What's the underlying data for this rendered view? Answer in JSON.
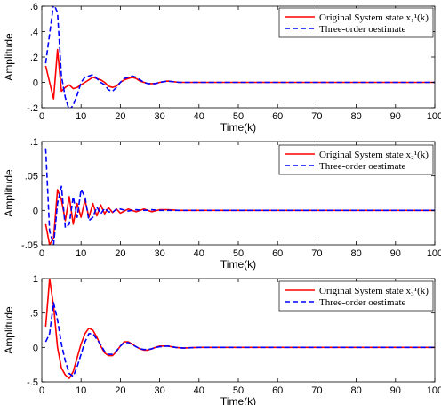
{
  "chart_data": [
    {
      "type": "line",
      "xlabel": "Time(k)",
      "ylabel": "Amplitude",
      "xlim": [
        0,
        100
      ],
      "ylim": [
        -0.2,
        0.6
      ],
      "xticks": [
        0,
        10,
        20,
        30,
        40,
        50,
        60,
        70,
        80,
        90,
        100
      ],
      "yticks": [
        -0.2,
        0,
        0.2,
        0.4,
        0.6
      ],
      "grid": false,
      "legend_position": "top-right",
      "series": [
        {
          "name": "Original System state x₁¹(k)",
          "color": "#ff0000",
          "style": "solid",
          "x": [
            1,
            2,
            3,
            4,
            5,
            6,
            7,
            8,
            9,
            10,
            11,
            12,
            13,
            14,
            15,
            16,
            17,
            18,
            19,
            20,
            21,
            22,
            23,
            24,
            25,
            26,
            27,
            28,
            29,
            30,
            32,
            35,
            40,
            45,
            50,
            55,
            60,
            70,
            80,
            90,
            100
          ],
          "values": [
            0.13,
            0.0,
            -0.13,
            0.26,
            -0.07,
            -0.04,
            -0.02,
            -0.05,
            -0.04,
            -0.02,
            0.0,
            0.02,
            0.04,
            0.03,
            0.02,
            0.0,
            -0.03,
            -0.04,
            -0.03,
            0.0,
            0.02,
            0.03,
            0.04,
            0.03,
            0.01,
            0.0,
            -0.01,
            -0.01,
            -0.01,
            0.0,
            0.01,
            0.0,
            0.0,
            0.0,
            0.0,
            0.0,
            0.0,
            0.0,
            0.0,
            0.0,
            0.0
          ]
        },
        {
          "name": "Three-order oestimate",
          "color": "#0000ff",
          "style": "dashed",
          "x": [
            1,
            2,
            3,
            4,
            5,
            6,
            7,
            8,
            9,
            10,
            11,
            12,
            13,
            14,
            15,
            16,
            17,
            18,
            19,
            20,
            21,
            22,
            23,
            24,
            25,
            26,
            27,
            28,
            29,
            30,
            32,
            35,
            40,
            45,
            50,
            55,
            60,
            70,
            80,
            90,
            100
          ],
          "values": [
            0.15,
            0.38,
            0.62,
            0.55,
            0.05,
            -0.12,
            -0.22,
            -0.18,
            -0.1,
            0.0,
            0.04,
            0.05,
            0.06,
            0.03,
            0.0,
            -0.02,
            -0.06,
            -0.07,
            -0.04,
            0.0,
            0.03,
            0.04,
            0.05,
            0.04,
            0.02,
            0.0,
            -0.01,
            -0.01,
            -0.01,
            0.0,
            0.01,
            0.0,
            0.0,
            0.0,
            0.0,
            0.0,
            0.0,
            0.0,
            0.0,
            0.0,
            0.0
          ]
        }
      ]
    },
    {
      "type": "line",
      "xlabel": "Time(k)",
      "ylabel": "Amplitude",
      "xlim": [
        0,
        100
      ],
      "ylim": [
        -0.05,
        0.1
      ],
      "xticks": [
        0,
        10,
        20,
        30,
        40,
        50,
        60,
        70,
        80,
        90,
        100
      ],
      "yticks": [
        -0.05,
        0,
        0.05,
        0.1
      ],
      "grid": false,
      "legend_position": "top-right",
      "series": [
        {
          "name": "Original System state x₂¹(k)",
          "color": "#ff0000",
          "style": "solid",
          "x": [
            1,
            2,
            3,
            4,
            5,
            6,
            7,
            8,
            9,
            10,
            11,
            12,
            13,
            14,
            15,
            16,
            17,
            18,
            19,
            20,
            22,
            24,
            26,
            28,
            30,
            32,
            35,
            40,
            45,
            50,
            60,
            70,
            80,
            90,
            100
          ],
          "values": [
            -0.02,
            -0.05,
            -0.04,
            0.03,
            0.015,
            -0.015,
            0.02,
            -0.02,
            0.01,
            -0.01,
            0.015,
            -0.01,
            0.01,
            -0.008,
            0.008,
            -0.005,
            0.004,
            -0.003,
            0.002,
            -0.004,
            0.002,
            -0.002,
            0.002,
            -0.002,
            0.001,
            0.001,
            0.0,
            0.0,
            0.0,
            0.0,
            0.0,
            0.0,
            0.0,
            0.0,
            0.0
          ]
        },
        {
          "name": "Three-order oestimate",
          "color": "#0000ff",
          "style": "dashed",
          "x": [
            1,
            2,
            3,
            4,
            5,
            6,
            7,
            8,
            9,
            10,
            11,
            12,
            13,
            14,
            15,
            16,
            17,
            18,
            19,
            20,
            22,
            24,
            26,
            28,
            30,
            32,
            35,
            40,
            45,
            50,
            60,
            70,
            80,
            90,
            100
          ],
          "values": [
            0.09,
            -0.03,
            -0.05,
            0.01,
            0.035,
            -0.025,
            -0.02,
            0.02,
            -0.01,
            0.03,
            0.02,
            -0.015,
            -0.01,
            0.005,
            -0.005,
            0.003,
            -0.002,
            -0.003,
            0.002,
            0.002,
            -0.001,
            0.001,
            0.0,
            0.001,
            0.0,
            0.0,
            0.0,
            0.0,
            0.0,
            0.0,
            0.0,
            0.0,
            0.0,
            0.0,
            0.0
          ]
        }
      ]
    },
    {
      "type": "line",
      "xlabel": "Time(k)",
      "ylabel": "Amplitude",
      "xlim": [
        0,
        100
      ],
      "ylim": [
        -0.5,
        1
      ],
      "xticks": [
        0,
        10,
        20,
        30,
        40,
        50,
        60,
        70,
        80,
        90,
        100
      ],
      "yticks": [
        -0.5,
        0,
        0.5,
        1
      ],
      "grid": false,
      "legend_position": "top-right",
      "series": [
        {
          "name": "Original System state x₃¹(k)",
          "color": "#ff0000",
          "style": "solid",
          "x": [
            1,
            2,
            3,
            4,
            5,
            6,
            7,
            8,
            9,
            10,
            11,
            12,
            13,
            14,
            15,
            16,
            17,
            18,
            19,
            20,
            21,
            22,
            23,
            24,
            25,
            26,
            27,
            28,
            29,
            30,
            32,
            34,
            36,
            40,
            45,
            50,
            55,
            60,
            70,
            80,
            90,
            100
          ],
          "values": [
            0.3,
            1.0,
            0.6,
            0.0,
            -0.3,
            -0.4,
            -0.45,
            -0.35,
            -0.15,
            0.05,
            0.2,
            0.28,
            0.25,
            0.15,
            0.02,
            -0.08,
            -0.12,
            -0.12,
            -0.06,
            0.02,
            0.08,
            0.08,
            0.05,
            0.01,
            -0.02,
            -0.04,
            -0.04,
            -0.02,
            0.0,
            0.02,
            0.02,
            0.0,
            -0.01,
            0.0,
            0.0,
            0.0,
            0.0,
            0.0,
            0.0,
            0.0,
            0.0,
            0.0
          ]
        },
        {
          "name": "Three-order oestimate",
          "color": "#0000ff",
          "style": "dashed",
          "x": [
            1,
            2,
            3,
            4,
            5,
            6,
            7,
            8,
            9,
            10,
            11,
            12,
            13,
            14,
            15,
            16,
            17,
            18,
            19,
            20,
            21,
            22,
            23,
            24,
            25,
            26,
            27,
            28,
            29,
            30,
            32,
            34,
            36,
            40,
            45,
            50,
            55,
            60,
            70,
            80,
            90,
            100
          ],
          "values": [
            0.08,
            0.2,
            0.65,
            0.4,
            0.05,
            -0.2,
            -0.38,
            -0.42,
            -0.28,
            -0.1,
            0.08,
            0.2,
            0.2,
            0.12,
            0.04,
            -0.06,
            -0.1,
            -0.1,
            -0.05,
            0.02,
            0.07,
            0.07,
            0.04,
            0.01,
            -0.02,
            -0.03,
            -0.03,
            -0.02,
            0.0,
            0.01,
            0.02,
            0.0,
            -0.01,
            0.0,
            0.0,
            0.0,
            0.0,
            0.0,
            0.0,
            0.0,
            0.0,
            0.0
          ]
        }
      ]
    }
  ]
}
